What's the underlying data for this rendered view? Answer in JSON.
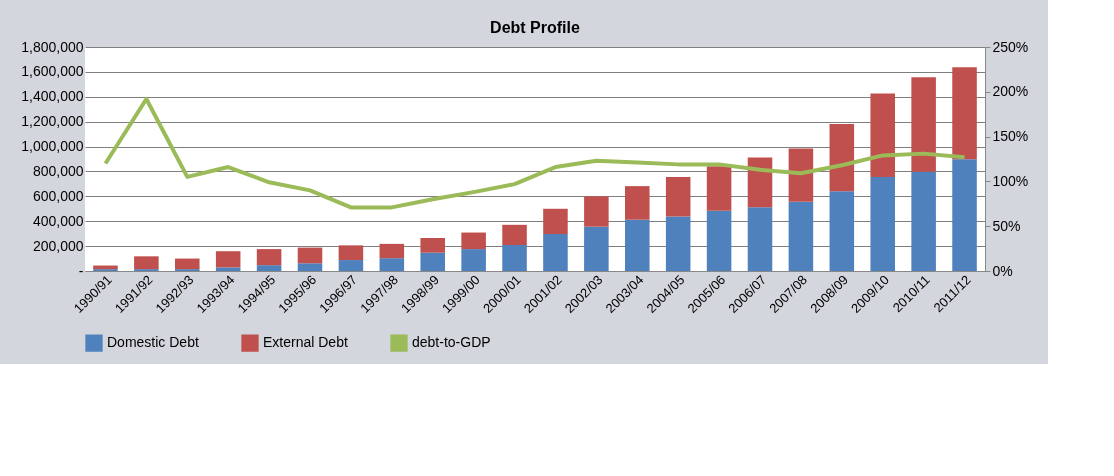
{
  "chart_data": {
    "type": "bar",
    "title": "Debt Profile",
    "stacked": true,
    "categories": [
      "1990/91",
      "1991/92",
      "1992/93",
      "1993/94",
      "1994/95",
      "1995/96",
      "1996/97",
      "1997/98",
      "1998/99",
      "1999/00",
      "2000/01",
      "2001/02",
      "2002/03",
      "2003/04",
      "2004/05",
      "2005/06",
      "2006/07",
      "2007/08",
      "2008/09",
      "2009/10",
      "2010/11",
      "2011/12"
    ],
    "series": [
      {
        "name": "Domestic Debt",
        "color": "#4f81bd",
        "values": [
          15000,
          15000,
          15000,
          29000,
          47000,
          62000,
          88000,
          103000,
          147000,
          176000,
          209000,
          297000,
          356000,
          412000,
          438000,
          485000,
          512000,
          556000,
          641000,
          756000,
          797000,
          897000
        ]
      },
      {
        "name": "External Debt",
        "color": "#c0504d",
        "values": [
          29000,
          103000,
          85000,
          130000,
          129000,
          126000,
          118000,
          115000,
          118000,
          133000,
          162000,
          203000,
          244000,
          270000,
          318000,
          356000,
          400000,
          429000,
          541000,
          670000,
          759000,
          741000
        ]
      },
      {
        "name": "debt-to-GDP",
        "color": "#9bbb59",
        "type": "line",
        "axis": "y2",
        "values": [
          120,
          192,
          105,
          116,
          99,
          90,
          71,
          71,
          80,
          88,
          97,
          116,
          123,
          121,
          119,
          119,
          113,
          109,
          118,
          129,
          131,
          127
        ]
      }
    ],
    "ylim": [
      0,
      1800000
    ],
    "yticks": [
      {
        "value": 0,
        "label": "-"
      },
      {
        "value": 200000,
        "label": "200,000"
      },
      {
        "value": 400000,
        "label": "400,000"
      },
      {
        "value": 600000,
        "label": "600,000"
      },
      {
        "value": 800000,
        "label": "800,000"
      },
      {
        "value": 1000000,
        "label": "1,000,000"
      },
      {
        "value": 1200000,
        "label": "1,200,000"
      },
      {
        "value": 1400000,
        "label": "1,400,000"
      },
      {
        "value": 1600000,
        "label": "1,600,000"
      },
      {
        "value": 1800000,
        "label": "1,800,000"
      }
    ],
    "y2lim": [
      0,
      250
    ],
    "y2ticks": [
      {
        "value": 0,
        "label": "0%"
      },
      {
        "value": 50,
        "label": "50%"
      },
      {
        "value": 100,
        "label": "100%"
      },
      {
        "value": 150,
        "label": "150%"
      },
      {
        "value": 200,
        "label": "200%"
      },
      {
        "value": 250,
        "label": "250%"
      }
    ],
    "grid": "y",
    "legend": "bottom",
    "marker": "none",
    "line_style": "solid"
  }
}
